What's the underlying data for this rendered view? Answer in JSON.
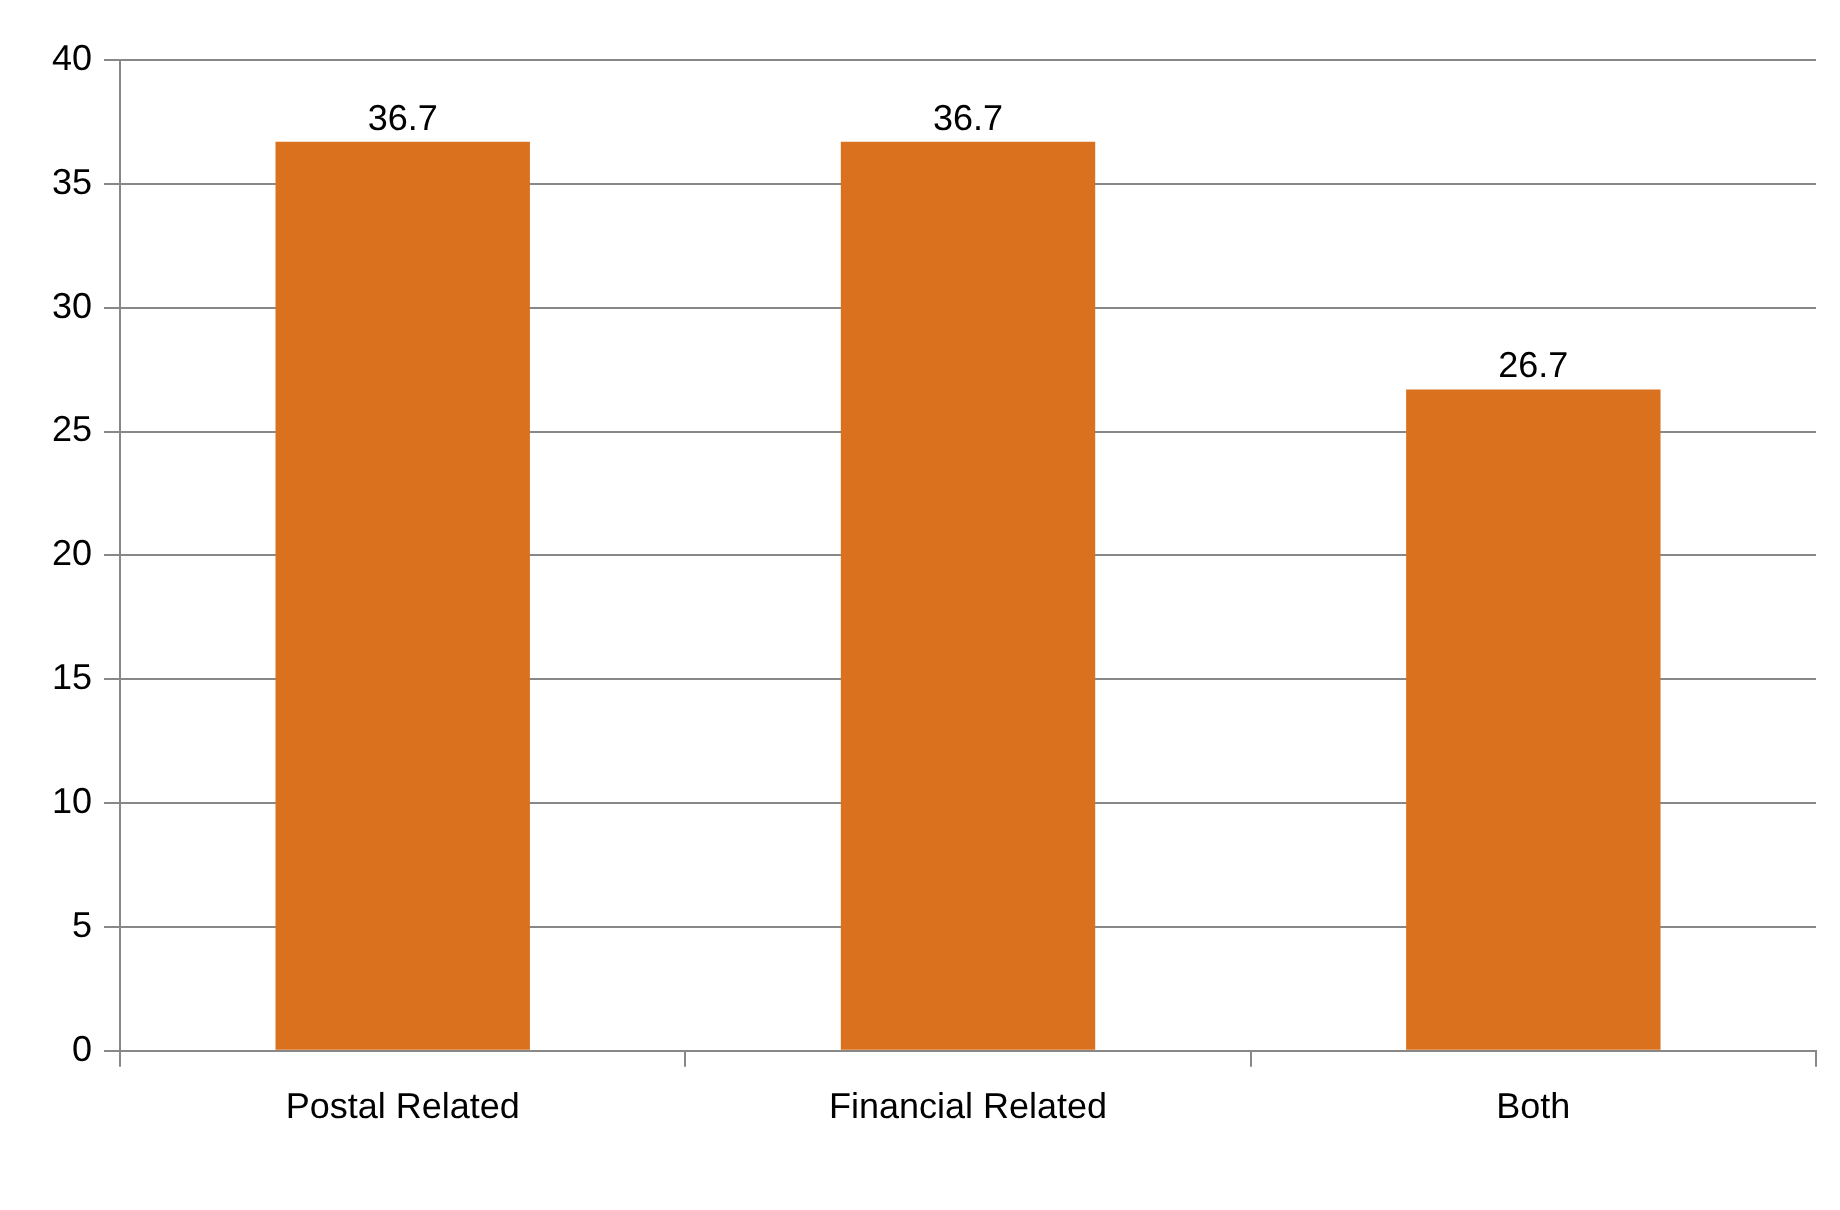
{
  "chart_data": {
    "type": "bar",
    "categories": [
      "Postal Related",
      "Financial Related",
      "Both"
    ],
    "values": [
      36.7,
      36.7,
      26.7
    ],
    "color": "#d9711f",
    "ylim": [
      0,
      40
    ],
    "yticks": [
      0,
      5,
      10,
      15,
      20,
      25,
      30,
      35,
      40
    ],
    "grid": "y",
    "data_labels": true,
    "legend": false
  }
}
